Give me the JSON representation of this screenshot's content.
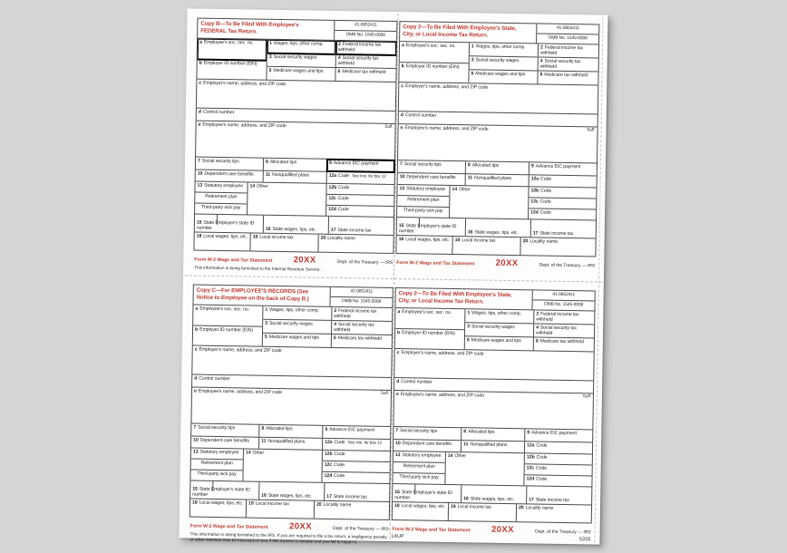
{
  "colors": {
    "accent_red": "#bc3a31",
    "paper": "#fdfdfc",
    "background": "#d5d5d6"
  },
  "header": {
    "id_number": "41-0852411",
    "omb": "OMB No. 1545-0008"
  },
  "footer": {
    "form": "Form W-2 Wage and Tax Statement",
    "year": "20XX",
    "dept": "Dept. of the Treasury — IRS"
  },
  "page": {
    "left_code": "L4UP",
    "right_code": "5205"
  },
  "labels": {
    "a": {
      "num": "a",
      "text": "Employee's soc. sec. no."
    },
    "b": {
      "num": "b",
      "text": "Employer ID number (EIN)"
    },
    "c": {
      "num": "c",
      "text": "Employer's name, address, and ZIP code"
    },
    "d": {
      "num": "d",
      "text": "Control number"
    },
    "e": {
      "num": "e",
      "text": "Employee's name, address, and ZIP code"
    },
    "suff": "Suff.",
    "b1": {
      "num": "1",
      "text": "Wages, tips, other comp."
    },
    "b2": {
      "num": "2",
      "text": "Federal income tax withheld"
    },
    "b3": {
      "num": "3",
      "text": "Social security wages"
    },
    "b4": {
      "num": "4",
      "text": "Social security tax withheld"
    },
    "b5": {
      "num": "5",
      "text": "Medicare wages and tips"
    },
    "b6": {
      "num": "6",
      "text": "Medicare tax withheld"
    },
    "b7": {
      "num": "7",
      "text": "Social security tips"
    },
    "b8": {
      "num": "8",
      "text": "Allocated tips"
    },
    "b9": {
      "num": "9",
      "text": "Advance EIC payment"
    },
    "b10": {
      "num": "10",
      "text": "Dependent care benefits"
    },
    "b11": {
      "num": "11",
      "text": "Nonqualified plans"
    },
    "b12a": {
      "num": "12a",
      "text": "Code"
    },
    "b12b": {
      "num": "12b",
      "text": "Code"
    },
    "b12c": {
      "num": "12c",
      "text": "Code"
    },
    "b12d": {
      "num": "12d",
      "text": "Code"
    },
    "b13_1": {
      "num": "13",
      "text": "Statutory employee"
    },
    "b13_2": "Retirement plan",
    "b13_3": "Third-party sick pay",
    "b14": {
      "num": "14",
      "text": "Other"
    },
    "b15": {
      "num": "15",
      "text": "State Employer's state ID number"
    },
    "b16": {
      "num": "16",
      "text": "State wages, tips, etc."
    },
    "b17": {
      "num": "17",
      "text": "State income tax"
    },
    "b18": {
      "num": "18",
      "text": "Local wages, tips, etc."
    },
    "b19": {
      "num": "19",
      "text": "Local income tax"
    },
    "b20": {
      "num": "20",
      "text": "Locality name"
    }
  },
  "quadrants": [
    {
      "title_line1": "Copy B—To Be Filed With Employee's",
      "title_italic": "",
      "title_line2": "FEDERAL Tax Return.",
      "box12a_note": "See inst. for box 12",
      "note": "This information is being furnished to the Internal Revenue Service.",
      "bold_boxes": true
    },
    {
      "title_line1": "Copy 2—To Be Filed With Employee's State,",
      "title_italic": "",
      "title_line2": "City, or Local Income Tax Return.",
      "box12a_note": "",
      "note": "",
      "bold_boxes": false
    },
    {
      "title_line1": "Copy C—For EMPLOYEE'S RECORDS (See",
      "title_italic": "Notice to Employee",
      "title_line2": " on the back of Copy B.)",
      "box12a_note": "See inst. for box 12",
      "note": "This information is being furnished to the IRS. If you are required to file a tax return, a negligence penalty or other sanction may be imposed on you if this income is taxable and you fail to report it.",
      "bold_boxes": false
    },
    {
      "title_line1": "Copy 2—To Be Filed With Employee's State,",
      "title_italic": "",
      "title_line2": "City, or Local Income Tax Return.",
      "box12a_note": "",
      "note": "",
      "bold_boxes": false
    }
  ]
}
